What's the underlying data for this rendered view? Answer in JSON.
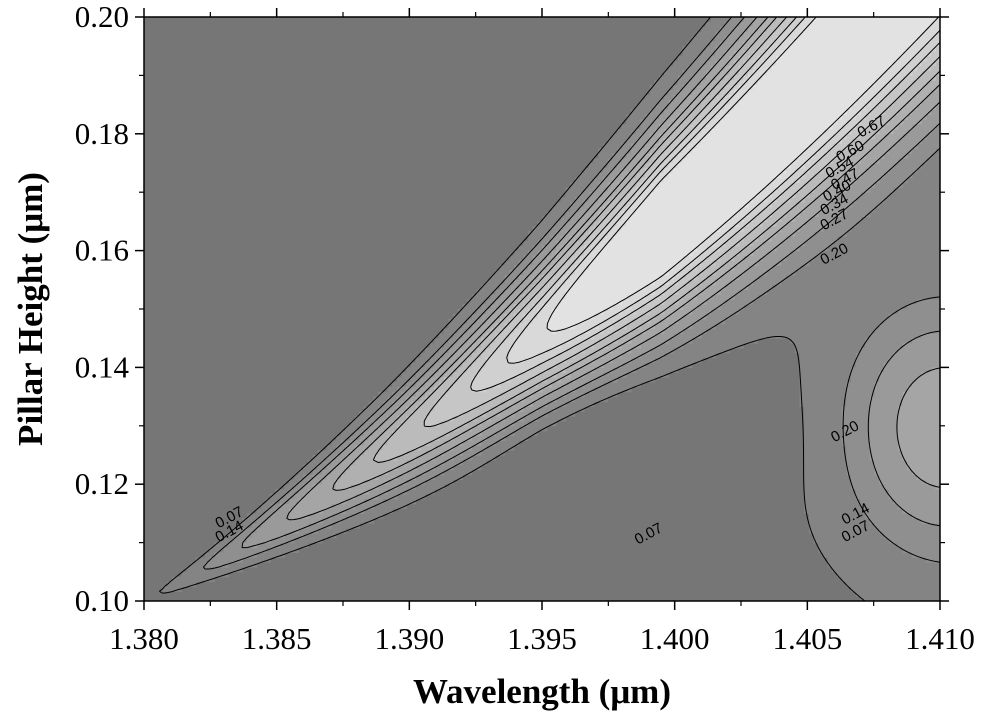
{
  "chart_data": {
    "type": "contour",
    "xlabel": "Wavelength (μm)",
    "ylabel": "Pillar Height (μm)",
    "xlim": [
      1.38,
      1.41
    ],
    "ylim": [
      0.1,
      0.2
    ],
    "x_ticks": [
      "1.380",
      "1.385",
      "1.390",
      "1.395",
      "1.400",
      "1.405",
      "1.410"
    ],
    "y_ticks": [
      "0.10",
      "0.12",
      "0.14",
      "0.16",
      "0.18",
      "0.20"
    ],
    "contour_levels": [
      0.07,
      0.14,
      0.2,
      0.27,
      0.34,
      0.4,
      0.47,
      0.54,
      0.6,
      0.67
    ],
    "colors": {
      "base": "#767676",
      "level_fills": [
        "#848484",
        "#8f8f8f",
        "#9a9a9a",
        "#a5a5a5",
        "#b0b0b0",
        "#bbbbbb",
        "#c6c6c6",
        "#d0d0d0",
        "#d9d9d9",
        "#e2e2e2"
      ],
      "line": "#000000"
    },
    "contour_labels": [
      {
        "text": "0.67",
        "x": 1.4075,
        "y": 0.1805
      },
      {
        "text": "0.60",
        "x": 1.4067,
        "y": 0.1763
      },
      {
        "text": "0.54",
        "x": 1.4063,
        "y": 0.1735
      },
      {
        "text": "0.47",
        "x": 1.4065,
        "y": 0.1715
      },
      {
        "text": "0.40",
        "x": 1.4062,
        "y": 0.1695
      },
      {
        "text": "0.34",
        "x": 1.4061,
        "y": 0.1672
      },
      {
        "text": "0.27",
        "x": 1.4061,
        "y": 0.1646
      },
      {
        "text": "0.20",
        "x": 1.4061,
        "y": 0.1587
      },
      {
        "text": "0.20",
        "x": 1.4065,
        "y": 0.1283
      },
      {
        "text": "0.14",
        "x": 1.4069,
        "y": 0.1142
      },
      {
        "text": "0.07",
        "x": 1.4069,
        "y": 0.1112
      },
      {
        "text": "0.07",
        "x": 1.3833,
        "y": 0.1136
      },
      {
        "text": "0.14",
        "x": 1.3833,
        "y": 0.1112
      },
      {
        "text": "0.07",
        "x": 1.3991,
        "y": 0.1108
      }
    ]
  }
}
